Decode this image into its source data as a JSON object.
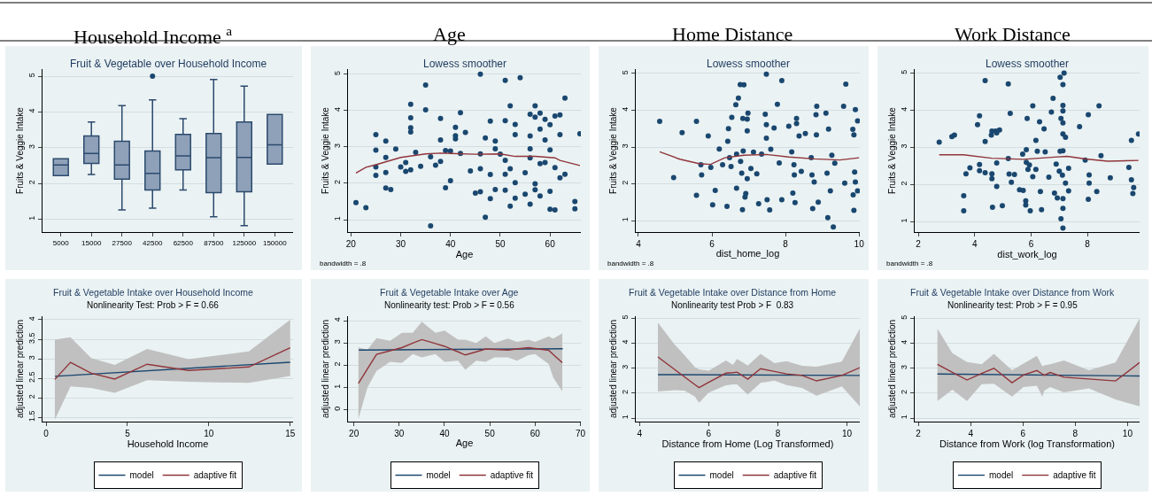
{
  "chart_data": [
    {
      "type": "box",
      "title": "Household Income $^{a}$",
      "subtitle": "Fruit & Vegetable over Household Income",
      "ylabel": "Fruits & Veggie Intake",
      "categories": [
        "5000",
        "15000",
        "27500",
        "42500",
        "62500",
        "87500",
        "125000",
        "150000"
      ],
      "ylim": [
        0.64,
        5.2
      ],
      "yticks": [
        1,
        2,
        3,
        4,
        5
      ],
      "grid": "y",
      "legend": false,
      "series": [
        {
          "color": "#8ea1b8",
          "boxes": [
            {
              "low": 2.22,
              "q1": 2.22,
              "median": 2.52,
              "q3": 2.69,
              "high": 2.69
            },
            {
              "low": 2.25,
              "q1": 2.56,
              "median": 2.84,
              "q3": 3.33,
              "high": 3.72
            },
            {
              "low": 1.26,
              "q1": 2.12,
              "median": 2.52,
              "q3": 3.18,
              "high": 4.18
            },
            {
              "low": 1.31,
              "q1": 1.82,
              "median": 2.28,
              "q3": 2.91,
              "high": 4.34,
              "outliers": [
                5.0
              ]
            },
            {
              "low": 1.82,
              "q1": 2.38,
              "median": 2.77,
              "q3": 3.37,
              "high": 3.81
            },
            {
              "low": 1.07,
              "q1": 1.74,
              "median": 2.72,
              "q3": 3.4,
              "high": 4.91
            },
            {
              "low": 0.82,
              "q1": 1.77,
              "median": 2.73,
              "q3": 3.72,
              "high": 4.72
            },
            {
              "low": 2.54,
              "q1": 2.54,
              "median": 3.08,
              "q3": 3.93,
              "high": 3.93
            }
          ]
        }
      ]
    },
    {
      "type": "scatter",
      "title": "Age",
      "subtitle": "Lowess smoother",
      "xlabel": "Age",
      "ylabel": "Fruits & Veggie Intake",
      "xlim": [
        19.4,
        66.2
      ],
      "xticks": [
        20,
        30,
        40,
        50,
        60
      ],
      "ylim": [
        0.66,
        5.14
      ],
      "yticks": [
        1,
        2,
        3,
        4,
        5
      ],
      "grid": "y",
      "legend": false,
      "annotations": [
        "bandwidth = .8"
      ],
      "series": [
        {
          "color": "#1a476f",
          "marker": "circle",
          "x": [
            21,
            23,
            25,
            25,
            25,
            25,
            27,
            27,
            27,
            27,
            28,
            29,
            30,
            31,
            31,
            32,
            32,
            32,
            32,
            32,
            33,
            34,
            35,
            35,
            36,
            36,
            37,
            38,
            38,
            38,
            39,
            39,
            40,
            40,
            41,
            41,
            41,
            42,
            42,
            43,
            44,
            45,
            46,
            46,
            46,
            46,
            47,
            47,
            48,
            48,
            48,
            49,
            49,
            49,
            50,
            51,
            51,
            51,
            51,
            51,
            52,
            52,
            52,
            53,
            53,
            53,
            53,
            54,
            55,
            55,
            56,
            56,
            56,
            56,
            56,
            57,
            57,
            57,
            57,
            58,
            58,
            58,
            58,
            59,
            59,
            59,
            60,
            60,
            60,
            60,
            61,
            61,
            61,
            62,
            62,
            62,
            63,
            63,
            65,
            65,
            66
          ],
          "values": [
            1.47,
            1.33,
            3.34,
            2.91,
            2.45,
            2.22,
            3.16,
            2.71,
            2.3,
            1.87,
            1.83,
            2.94,
            2.45,
            2.57,
            2.33,
            4.17,
            3.8,
            3.53,
            3.41,
            2.37,
            2.85,
            2.47,
            4.7,
            4.02,
            2.73,
            0.83,
            2.5,
            3.78,
            3.19,
            2.6,
            2.9,
            1.88,
            2.89,
            2.07,
            3.54,
            3.31,
            3.22,
            3.94,
            2.82,
            3.4,
            2.34,
            1.73,
            5.0,
            2.81,
            2.4,
            1.77,
            1.07,
            3.25,
            3.71,
            2.24,
            1.58,
            3.16,
            2.95,
            1.83,
            2.8,
            4.83,
            3.72,
            2.63,
            2.25,
            1.81,
            4.13,
            2.4,
            1.37,
            3.62,
            3.34,
            2.02,
            1.59,
            4.9,
            2.29,
            1.7,
            3.9,
            3.3,
            2.95,
            2.7,
            1.43,
            4.13,
            3.82,
            1.99,
            1.82,
            3.93,
            3.49,
            2.54,
            1.65,
            3.76,
            3.19,
            2.57,
            3.61,
            2.92,
            1.78,
            1.29,
            3.85,
            2.43,
            1.27,
            3.88,
            3.34,
            2.15,
            4.34,
            2.25,
            1.5,
            1.3,
            3.36
          ]
        },
        {
          "type": "line",
          "color": "#90353b",
          "x": [
            21,
            23,
            25,
            30,
            35,
            38,
            45,
            50,
            53,
            57,
            61,
            62,
            66
          ],
          "values": [
            2.28,
            2.44,
            2.51,
            2.71,
            2.81,
            2.83,
            2.8,
            2.81,
            2.74,
            2.74,
            2.7,
            2.63,
            2.49
          ]
        }
      ]
    },
    {
      "type": "scatter",
      "title": "Home Distance",
      "subtitle": "Lowess smoother",
      "xlabel": "dist_home_log",
      "ylabel": "Fruits & Veggie Intake",
      "xlim": [
        3.93,
        10.02
      ],
      "xticks": [
        4,
        6,
        8,
        10
      ],
      "ylim": [
        0.69,
        5.12
      ],
      "yticks": [
        1,
        2,
        3,
        4,
        5
      ],
      "grid": "y",
      "legend": false,
      "annotations": [
        "bandwidth = .8"
      ],
      "series": [
        {
          "color": "#1a476f",
          "marker": "circle",
          "x": [
            4.58,
            4.96,
            5.19,
            5.58,
            5.58,
            5.7,
            5.72,
            5.9,
            5.97,
            6.02,
            6.09,
            6.2,
            6.29,
            6.41,
            6.43,
            6.45,
            6.48,
            6.52,
            6.54,
            6.65,
            6.67,
            6.67,
            6.72,
            6.77,
            6.78,
            6.81,
            6.83,
            6.84,
            6.85,
            6.87,
            6.9,
            6.92,
            6.96,
            6.96,
            6.98,
            6.96,
            7.06,
            7.13,
            7.22,
            7.27,
            7.35,
            7.45,
            7.48,
            7.48,
            7.48,
            7.5,
            7.57,
            7.6,
            7.69,
            7.78,
            7.83,
            7.9,
            7.9,
            8.09,
            8.17,
            8.2,
            8.23,
            8.24,
            8.26,
            8.3,
            8.3,
            8.37,
            8.43,
            8.54,
            8.7,
            8.72,
            8.74,
            8.78,
            8.83,
            8.84,
            8.85,
            8.89,
            9.1,
            9.13,
            9.15,
            9.17,
            9.22,
            9.26,
            9.3,
            9.34,
            9.58,
            9.61,
            9.64,
            9.83,
            9.84,
            9.86,
            9.86,
            9.88,
            9.9,
            9.9,
            9.96,
            9.96
          ],
          "values": [
            3.7,
            2.17,
            3.39,
            3.7,
            1.69,
            2.52,
            2.24,
            3.3,
            2.45,
            1.43,
            1.82,
            2.95,
            2.52,
            1.39,
            3.16,
            3.5,
            2.71,
            2.47,
            3.81,
            4.15,
            2.81,
            1.88,
            4.33,
            4.7,
            2.61,
            2.29,
            1.3,
            3.78,
            2.89,
            4.69,
            1.64,
            1.74,
            3.44,
            3.76,
            3.92,
            2.14,
            2.42,
            2.86,
            2.27,
            1.46,
            2.81,
            3.89,
            4.98,
            3.61,
            3.24,
            1.57,
            1.29,
            2.94,
            3.52,
            4.16,
            2.57,
            4.81,
            1.57,
            3.57,
            2.87,
            1.75,
            2.52,
            2.24,
            1.49,
            3.64,
            3.78,
            3.3,
            2.34,
            3.37,
            2.71,
            2.24,
            1.33,
            2.05,
            3.88,
            3.33,
            4.11,
            1.5,
            3.92,
            2.29,
            1.08,
            3.49,
            1.81,
            2.78,
            0.83,
            2.56,
            4.11,
            2.02,
            4.71,
            3.48,
            1.7,
            3.33,
            1.28,
            2.32,
            4.02,
            2.05,
            3.71,
            1.81
          ]
        },
        {
          "type": "line",
          "color": "#90353b",
          "x": [
            4.58,
            5.13,
            5.65,
            5.96,
            6.35,
            6.87,
            7.48,
            8.09,
            8.78,
            9.48,
            10.0
          ],
          "values": [
            2.87,
            2.67,
            2.55,
            2.53,
            2.71,
            2.78,
            2.8,
            2.73,
            2.68,
            2.65,
            2.71
          ]
        }
      ]
    },
    {
      "type": "scatter",
      "title": "Work Distance",
      "subtitle": "Lowess smoother",
      "xlabel": "dist_work_log",
      "ylabel": "Fruits & Veggie Intake",
      "xlim": [
        1.87,
        9.85
      ],
      "xticks": [
        2,
        4,
        6,
        8
      ],
      "ylim": [
        0.72,
        5.11
      ],
      "yticks": [
        1,
        2,
        3,
        4,
        5
      ],
      "grid": "y",
      "legend": false,
      "annotations": [
        "bandwidth = .8"
      ],
      "series": [
        {
          "color": "#1a476f",
          "marker": "circle",
          "x": [
            2.74,
            3.19,
            3.28,
            3.61,
            3.61,
            3.69,
            3.83,
            4.1,
            4.17,
            4.17,
            4.17,
            4.37,
            4.37,
            4.37,
            4.59,
            4.61,
            4.61,
            4.61,
            4.63,
            4.74,
            4.78,
            4.78,
            4.78,
            4.88,
            4.98,
            5.19,
            5.19,
            5.22,
            5.26,
            5.3,
            5.41,
            5.59,
            5.7,
            5.72,
            5.81,
            5.81,
            5.83,
            5.83,
            5.86,
            5.89,
            5.94,
            5.97,
            6.06,
            6.06,
            6.17,
            6.17,
            6.22,
            6.3,
            6.33,
            6.37,
            6.46,
            6.5,
            6.63,
            6.72,
            6.78,
            6.83,
            6.89,
            6.93,
            7.0,
            7.03,
            7.06,
            7.06,
            7.11,
            7.13,
            7.17,
            7.22,
            7.22,
            7.33,
            7.33,
            7.03,
            7.13,
            7.13,
            7.13,
            7.13,
            7.13,
            7.13,
            7.13,
            7.13,
            7.72,
            7.92,
            8.03,
            8.33,
            8.03,
            8.06,
            8.06,
            8.41,
            8.48,
            8.81,
            9.47,
            9.56,
            9.56,
            9.64,
            9.61,
            9.81
          ],
          "values": [
            3.14,
            3.29,
            3.33,
            1.7,
            1.29,
            2.29,
            2.45,
            3.61,
            3.85,
            2.54,
            2.37,
            4.8,
            3.16,
            2.32,
            3.33,
            3.44,
            2.29,
            2.16,
            1.39,
            3.44,
            3.39,
            2.58,
            1.95,
            3.47,
            1.43,
            4.71,
            2.7,
            2.28,
            3.92,
            2.06,
            2.27,
            1.86,
            2.82,
            1.84,
            1.56,
            1.45,
            2.94,
            2.6,
            3.78,
            2.41,
            2.53,
            1.29,
            4.12,
            2.21,
            2.41,
            3.19,
            2.9,
            3.69,
            1.81,
            1.32,
            3.5,
            2.88,
            2.2,
            3.95,
            4.32,
            1.77,
            2.55,
            1.64,
            2.36,
            2.9,
            3.78,
            1.08,
            2.25,
            3.66,
            5.0,
            3.27,
            2.04,
            2.44,
            1.83,
            4.89,
            3.36,
            2.91,
            4.13,
            3.98,
            1.62,
            1.36,
            0.83,
            4.69,
            3.56,
            2.66,
            1.6,
            1.81,
            3.88,
            2.26,
            2.04,
            4.12,
            2.78,
            2.18,
            2.46,
            3.19,
            2.13,
            1.92,
            1.76,
            3.36
          ]
        },
        {
          "type": "line",
          "color": "#90353b",
          "x": [
            2.74,
            3.6,
            4.6,
            5.72,
            6.83,
            7.28,
            7.94,
            8.72,
            9.81
          ],
          "values": [
            2.8,
            2.8,
            2.71,
            2.68,
            2.74,
            2.76,
            2.69,
            2.63,
            2.65
          ]
        }
      ]
    },
    {
      "type": "line",
      "title": "Fruit & Vegetable Intake over Household Income",
      "subtitle": "Nonlinearity Test: Prob > F = 0.66",
      "xlabel": "Household Income",
      "ylabel": "adjusted linear prediction",
      "xlim": [
        -0.22,
        15.18
      ],
      "xticks": [
        0,
        5,
        10,
        15
      ],
      "ylim": [
        1.39,
        4.09
      ],
      "yticks": [
        1.5,
        2,
        2.5,
        3,
        3.5,
        4
      ],
      "grid": "y",
      "legend": "bottom",
      "series": [
        {
          "name": "model",
          "color": "#1a476f",
          "x": [
            0.54,
            15
          ],
          "values": [
            2.55,
            2.91
          ]
        },
        {
          "name": "adaptive fit",
          "color": "#90353b",
          "x": [
            0.54,
            1.5,
            2.77,
            4.22,
            6.21,
            8.75,
            12.46,
            15
          ],
          "values": [
            2.47,
            2.91,
            2.63,
            2.48,
            2.86,
            2.7,
            2.79,
            3.28
          ],
          "upper": [
            3.49,
            3.55,
            3.02,
            2.84,
            3.25,
            2.99,
            3.19,
            4.0
          ],
          "lower": [
            1.44,
            2.29,
            2.25,
            2.13,
            2.45,
            2.41,
            2.38,
            2.56
          ]
        }
      ]
    },
    {
      "type": "line",
      "title": "Fruit & Vegetable Intake over Age",
      "subtitle": "Nonlinearity test: Prob > F = 0.56",
      "xlabel": "Age",
      "ylabel": "adjusted linear prediction",
      "xlim": [
        18.7,
        70.1
      ],
      "xticks": [
        20,
        30,
        40,
        50,
        60,
        70
      ],
      "ylim": [
        -0.53,
        4.2
      ],
      "yticks": [
        0,
        1,
        2,
        3,
        4
      ],
      "grid": "y",
      "legend": "bottom",
      "series": [
        {
          "name": "model",
          "color": "#1a476f",
          "x": [
            21.07,
            66.1
          ],
          "values": [
            2.68,
            2.74
          ]
        },
        {
          "name": "adaptive fit",
          "color": "#90353b",
          "x": [
            21,
            23,
            25,
            28,
            30.6,
            33,
            35,
            38,
            40,
            43,
            44.6,
            47,
            49.1,
            51,
            54,
            56,
            58.5,
            60,
            63,
            64,
            66
          ],
          "values": [
            1.18,
            1.84,
            2.49,
            2.65,
            2.79,
            2.99,
            3.15,
            2.97,
            2.85,
            2.6,
            2.46,
            2.6,
            2.73,
            2.71,
            2.68,
            2.73,
            2.79,
            2.75,
            2.67,
            2.48,
            2.11
          ],
          "upper": [
            2.8,
            2.7,
            3.22,
            3.1,
            3.45,
            3.45,
            3.95,
            3.45,
            3.55,
            3.15,
            3.15,
            3.0,
            3.3,
            3.0,
            3.2,
            3.05,
            3.15,
            3.05,
            3.3,
            3.2,
            3.42
          ],
          "lower": [
            -0.4,
            1.0,
            1.75,
            2.15,
            2.1,
            2.5,
            2.35,
            2.5,
            2.15,
            2.2,
            1.8,
            2.2,
            2.15,
            2.35,
            2.35,
            2.2,
            2.45,
            2.5,
            2.05,
            1.45,
            0.82
          ]
        }
      ]
    },
    {
      "type": "line",
      "title": "Fruit & Vegetable Intake over Distance from Home",
      "subtitle": "Nonlinearity test Prob > F  0.83",
      "xlabel": "Distance from Home (Log Transformed)",
      "ylabel": "adjusted linear prediction",
      "xlim": [
        3.89,
        10.37
      ],
      "xticks": [
        4,
        6,
        8,
        10
      ],
      "ylim": [
        0.86,
        5.08
      ],
      "yticks": [
        1,
        2,
        3,
        4,
        5
      ],
      "grid": "y",
      "legend": "bottom",
      "series": [
        {
          "name": "model",
          "color": "#1a476f",
          "x": [
            4.53,
            10.37
          ],
          "values": [
            2.74,
            2.71
          ]
        },
        {
          "name": "adaptive fit",
          "color": "#90353b",
          "x": [
            4.53,
            5.0,
            5.3,
            5.6,
            5.72,
            6.0,
            6.5,
            6.7,
            6.82,
            7.13,
            7.5,
            7.9,
            8.25,
            8.7,
            9.12,
            9.85,
            10.37
          ],
          "values": [
            3.45,
            2.96,
            2.65,
            2.34,
            2.22,
            2.43,
            2.8,
            2.82,
            2.84,
            2.56,
            2.98,
            2.87,
            2.77,
            2.71,
            2.49,
            2.71,
            3.02
          ],
          "upper": [
            4.82,
            3.97,
            3.52,
            3.04,
            2.95,
            2.9,
            3.31,
            3.13,
            3.37,
            3.1,
            3.57,
            3.2,
            3.28,
            3.09,
            3.06,
            3.26,
            4.58
          ],
          "lower": [
            2.07,
            2.12,
            2.1,
            1.86,
            1.61,
            2.02,
            2.31,
            2.35,
            2.35,
            1.94,
            2.41,
            2.5,
            2.32,
            2.21,
            1.9,
            2.27,
            1.47
          ]
        }
      ]
    },
    {
      "type": "line",
      "title": "Fruit & Vegetable Intake over Distance from Work",
      "subtitle": "Nonlinearity test: Prob > F = 0.95",
      "xlabel": "Distance from Work (log Transformation)",
      "ylabel": "adjusted linear prediction",
      "xlim": [
        1.86,
        10.46
      ],
      "xticks": [
        2,
        4,
        6,
        8,
        10
      ],
      "ylim": [
        0.86,
        5.09
      ],
      "yticks": [
        1,
        2,
        3,
        4,
        5
      ],
      "grid": "y",
      "legend": "bottom",
      "series": [
        {
          "name": "model",
          "color": "#1a476f",
          "x": [
            2.73,
            10.46
          ],
          "values": [
            2.77,
            2.69
          ]
        },
        {
          "name": "adaptive fit",
          "color": "#90353b",
          "x": [
            2.73,
            3.3,
            3.86,
            4.42,
            4.89,
            5.58,
            6.02,
            6.53,
            6.74,
            6.82,
            7.04,
            7.57,
            8.52,
            9.54,
            10.46
          ],
          "values": [
            3.16,
            2.84,
            2.53,
            2.79,
            3.0,
            2.42,
            2.73,
            2.91,
            2.77,
            2.72,
            2.83,
            2.64,
            2.57,
            2.49,
            3.23
          ],
          "upper": [
            4.59,
            3.61,
            3.25,
            3.16,
            3.58,
            2.92,
            3.19,
            3.5,
            3.08,
            3.12,
            3.16,
            3.31,
            2.92,
            3.23,
            5.0
          ],
          "lower": [
            1.69,
            2.14,
            1.69,
            2.36,
            2.38,
            1.86,
            2.25,
            2.3,
            1.86,
            2.1,
            2.25,
            2.03,
            2.19,
            1.75,
            1.47
          ]
        }
      ]
    }
  ]
}
